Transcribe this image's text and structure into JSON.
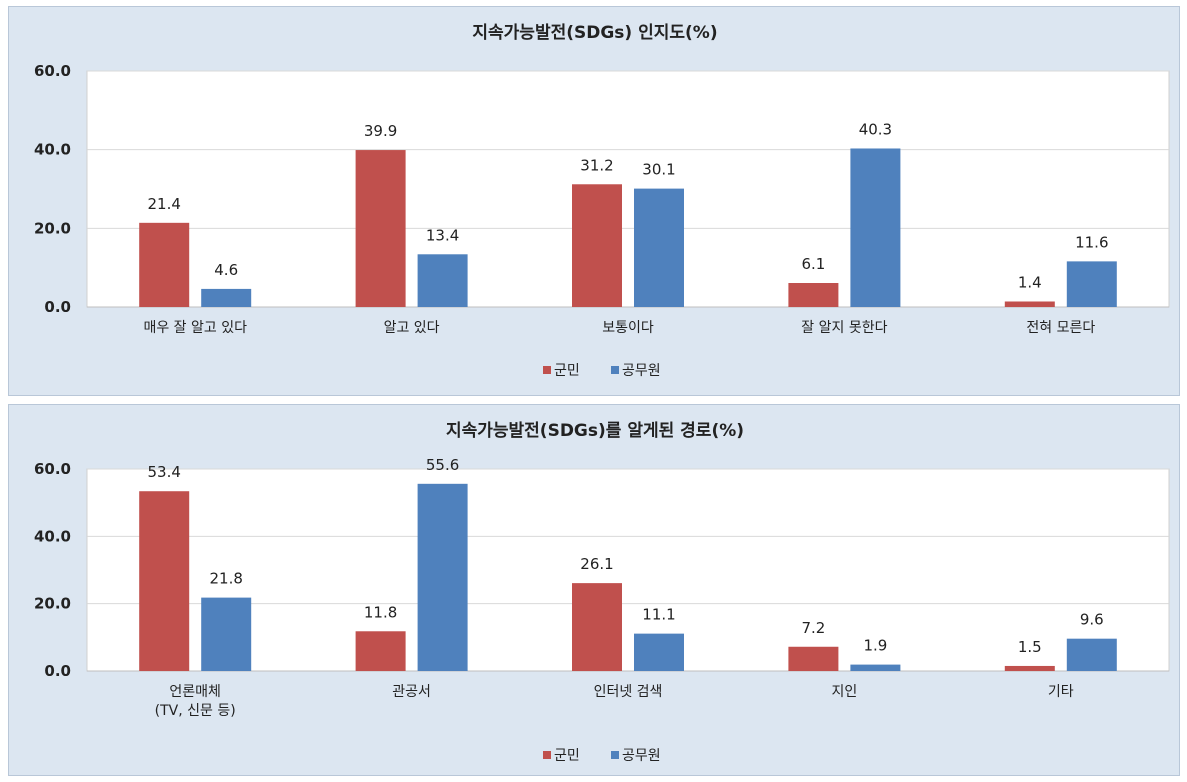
{
  "chart_data": [
    {
      "type": "bar",
      "title": "지속가능발전(SDGs) 인지도(%)",
      "categories": [
        [
          "매우 잘 알고 있다"
        ],
        [
          "알고 있다"
        ],
        [
          "보통이다"
        ],
        [
          "잘 알지 못한다"
        ],
        [
          "전혀 모른다"
        ]
      ],
      "series": [
        {
          "name": "군민",
          "color": "#c0504d",
          "values": [
            21.4,
            39.9,
            31.2,
            6.1,
            1.4
          ]
        },
        {
          "name": "공무원",
          "color": "#4f81bd",
          "values": [
            4.6,
            13.4,
            30.1,
            40.3,
            11.6
          ]
        }
      ],
      "ylim": [
        0,
        60
      ],
      "yticks": [
        "0.0",
        "20.0",
        "40.0",
        "60.0"
      ],
      "grid": true,
      "legend": "bottom-center"
    },
    {
      "type": "bar",
      "title": "지속가능발전(SDGs)를 알게된 경로(%)",
      "categories": [
        [
          "언론매체",
          "(TV, 신문 등)"
        ],
        [
          "관공서"
        ],
        [
          "인터넷 검색"
        ],
        [
          "지인"
        ],
        [
          "기타"
        ]
      ],
      "series": [
        {
          "name": "군민",
          "color": "#c0504d",
          "values": [
            53.4,
            11.8,
            26.1,
            7.2,
            1.5
          ]
        },
        {
          "name": "공무원",
          "color": "#4f81bd",
          "values": [
            21.8,
            55.6,
            11.1,
            1.9,
            9.6
          ]
        }
      ],
      "ylim": [
        0,
        60
      ],
      "yticks": [
        "0.0",
        "20.0",
        "40.0",
        "60.0"
      ],
      "grid": true,
      "legend": "bottom-center"
    }
  ]
}
